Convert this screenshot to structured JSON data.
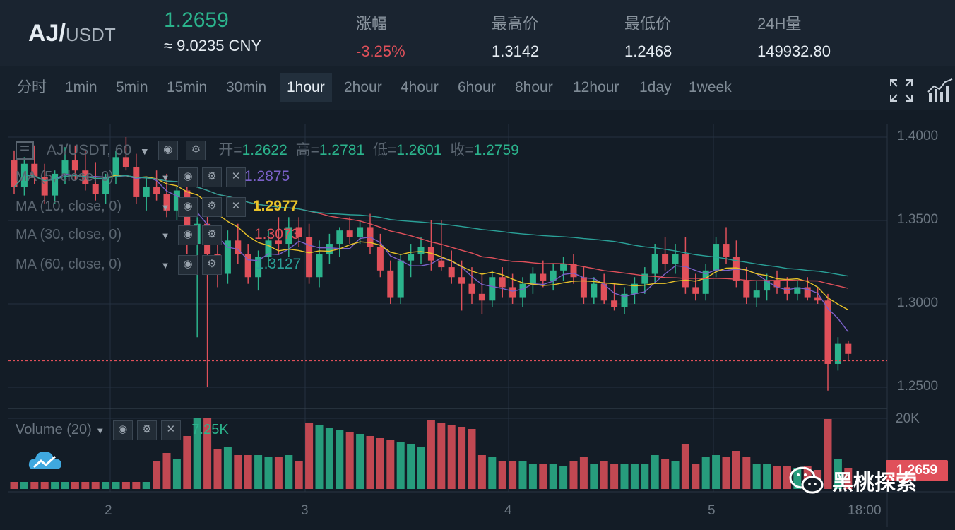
{
  "header": {
    "pair_base": "AJ/",
    "pair_quote": "USDT",
    "last_price": "1.2659",
    "cny_price": "≈ 9.0235 CNY",
    "stats": [
      {
        "label": "涨幅",
        "value": "-3.25%",
        "down": true
      },
      {
        "label": "最高价",
        "value": "1.3142",
        "down": false
      },
      {
        "label": "最低价",
        "value": "1.2468",
        "down": false
      },
      {
        "label": "24H量",
        "value": "149932.80",
        "down": false
      }
    ]
  },
  "toolbar": {
    "timeframes": [
      "分时",
      "1min",
      "5min",
      "15min",
      "30min",
      "1hour",
      "2hour",
      "4hour",
      "6hour",
      "8hour",
      "12hour",
      "1day",
      "1week"
    ],
    "active": "1hour",
    "icons": [
      "fullscreen-icon",
      "indicators-icon"
    ]
  },
  "legend": {
    "symbol": "AJ/USDT, 60",
    "open_label": "开=",
    "open": "1.2622",
    "high_label": "高=",
    "high": "1.2781",
    "low_label": "低=",
    "low": "1.2601",
    "close_label": "收=",
    "close": "1.2759"
  },
  "indicators": [
    {
      "label": "MA (5, close, 0)",
      "value": "1.2875",
      "color": "#7b61c9"
    },
    {
      "label": "MA (10, close, 0)",
      "value": "1.2977",
      "color": "#e8c229"
    },
    {
      "label": "MA (30, close, 0)",
      "value": "1.3073",
      "color": "#e0505a"
    },
    {
      "label": "MA (60, close, 0)",
      "value": "1.3127",
      "color": "#2aa198"
    }
  ],
  "volume": {
    "label": "Volume (20)",
    "value": "7.25K"
  },
  "price_axis": [
    "1.4000",
    "1.3500",
    "1.3000",
    "1.2500"
  ],
  "volume_axis": [
    "20K"
  ],
  "time_axis": [
    "2",
    "3",
    "4",
    "5",
    "18:00"
  ],
  "last_tag": "1.2659",
  "watermark": "黑桃探索",
  "colors": {
    "up": "#2bb38c",
    "down": "#e0505a",
    "bg": "#131c26"
  },
  "chart_data": {
    "type": "candlestick",
    "ohlc": [
      [
        1.386,
        1.392,
        1.366,
        1.37
      ],
      [
        1.37,
        1.388,
        1.365,
        1.384
      ],
      [
        1.384,
        1.395,
        1.372,
        1.376
      ],
      [
        1.376,
        1.384,
        1.36,
        1.365
      ],
      [
        1.365,
        1.38,
        1.36,
        1.378
      ],
      [
        1.378,
        1.394,
        1.372,
        1.386
      ],
      [
        1.386,
        1.395,
        1.374,
        1.38
      ],
      [
        1.38,
        1.392,
        1.368,
        1.372
      ],
      [
        1.372,
        1.385,
        1.362,
        1.366
      ],
      [
        1.366,
        1.378,
        1.36,
        1.376
      ],
      [
        1.376,
        1.392,
        1.372,
        1.388
      ],
      [
        1.388,
        1.4,
        1.38,
        1.382
      ],
      [
        1.382,
        1.39,
        1.36,
        1.364
      ],
      [
        1.364,
        1.376,
        1.356,
        1.37
      ],
      [
        1.37,
        1.38,
        1.362,
        1.366
      ],
      [
        1.366,
        1.378,
        1.352,
        1.356
      ],
      [
        1.356,
        1.37,
        1.35,
        1.368
      ],
      [
        1.368,
        1.372,
        1.33,
        1.336
      ],
      [
        1.336,
        1.352,
        1.28,
        1.348
      ],
      [
        1.348,
        1.36,
        1.25,
        1.33
      ],
      [
        1.33,
        1.34,
        1.31,
        1.318
      ],
      [
        1.318,
        1.344,
        1.312,
        1.338
      ],
      [
        1.338,
        1.348,
        1.324,
        1.33
      ],
      [
        1.33,
        1.336,
        1.312,
        1.316
      ],
      [
        1.316,
        1.332,
        1.308,
        1.328
      ],
      [
        1.328,
        1.344,
        1.322,
        1.338
      ],
      [
        1.338,
        1.352,
        1.33,
        1.336
      ],
      [
        1.336,
        1.352,
        1.328,
        1.346
      ],
      [
        1.346,
        1.352,
        1.334,
        1.34
      ],
      [
        1.34,
        1.348,
        1.312,
        1.316
      ],
      [
        1.316,
        1.338,
        1.31,
        1.33
      ],
      [
        1.33,
        1.342,
        1.324,
        1.336
      ],
      [
        1.336,
        1.346,
        1.328,
        1.344
      ],
      [
        1.344,
        1.352,
        1.336,
        1.34
      ],
      [
        1.34,
        1.35,
        1.336,
        1.346
      ],
      [
        1.346,
        1.354,
        1.33,
        1.334
      ],
      [
        1.334,
        1.342,
        1.316,
        1.32
      ],
      [
        1.32,
        1.326,
        1.3,
        1.304
      ],
      [
        1.304,
        1.33,
        1.3,
        1.326
      ],
      [
        1.326,
        1.336,
        1.316,
        1.33
      ],
      [
        1.33,
        1.34,
        1.324,
        1.334
      ],
      [
        1.334,
        1.35,
        1.32,
        1.326
      ],
      [
        1.326,
        1.35,
        1.32,
        1.322
      ],
      [
        1.322,
        1.332,
        1.312,
        1.316
      ],
      [
        1.316,
        1.326,
        1.296,
        1.312
      ],
      [
        1.312,
        1.322,
        1.3,
        1.306
      ],
      [
        1.306,
        1.318,
        1.294,
        1.302
      ],
      [
        1.302,
        1.32,
        1.298,
        1.316
      ],
      [
        1.316,
        1.322,
        1.304,
        1.31
      ],
      [
        1.31,
        1.318,
        1.3,
        1.304
      ],
      [
        1.304,
        1.316,
        1.298,
        1.312
      ],
      [
        1.312,
        1.322,
        1.306,
        1.318
      ],
      [
        1.318,
        1.326,
        1.31,
        1.314
      ],
      [
        1.314,
        1.324,
        1.308,
        1.32
      ],
      [
        1.32,
        1.328,
        1.314,
        1.324
      ],
      [
        1.324,
        1.33,
        1.312,
        1.316
      ],
      [
        1.316,
        1.322,
        1.3,
        1.304
      ],
      [
        1.304,
        1.316,
        1.3,
        1.312
      ],
      [
        1.312,
        1.318,
        1.3,
        1.302
      ],
      [
        1.302,
        1.312,
        1.296,
        1.298
      ],
      [
        1.298,
        1.31,
        1.294,
        1.306
      ],
      [
        1.306,
        1.316,
        1.3,
        1.312
      ],
      [
        1.312,
        1.322,
        1.306,
        1.318
      ],
      [
        1.318,
        1.336,
        1.312,
        1.33
      ],
      [
        1.33,
        1.34,
        1.32,
        1.324
      ],
      [
        1.324,
        1.336,
        1.318,
        1.33
      ],
      [
        1.33,
        1.34,
        1.306,
        1.31
      ],
      [
        1.31,
        1.318,
        1.302,
        1.306
      ],
      [
        1.306,
        1.324,
        1.302,
        1.32
      ],
      [
        1.32,
        1.34,
        1.316,
        1.336
      ],
      [
        1.336,
        1.346,
        1.324,
        1.328
      ],
      [
        1.328,
        1.338,
        1.31,
        1.314
      ],
      [
        1.314,
        1.322,
        1.3,
        1.304
      ],
      [
        1.304,
        1.314,
        1.298,
        1.308
      ],
      [
        1.308,
        1.318,
        1.302,
        1.314
      ],
      [
        1.314,
        1.32,
        1.306,
        1.31
      ],
      [
        1.31,
        1.316,
        1.302,
        1.306
      ],
      [
        1.306,
        1.314,
        1.302,
        1.31
      ],
      [
        1.31,
        1.316,
        1.302,
        1.304
      ],
      [
        1.304,
        1.31,
        1.3,
        1.302
      ],
      [
        1.302,
        1.306,
        1.248,
        1.264
      ],
      [
        1.264,
        1.28,
        1.26,
        1.276
      ],
      [
        1.276,
        1.278,
        1.266,
        1.27
      ]
    ]
  }
}
